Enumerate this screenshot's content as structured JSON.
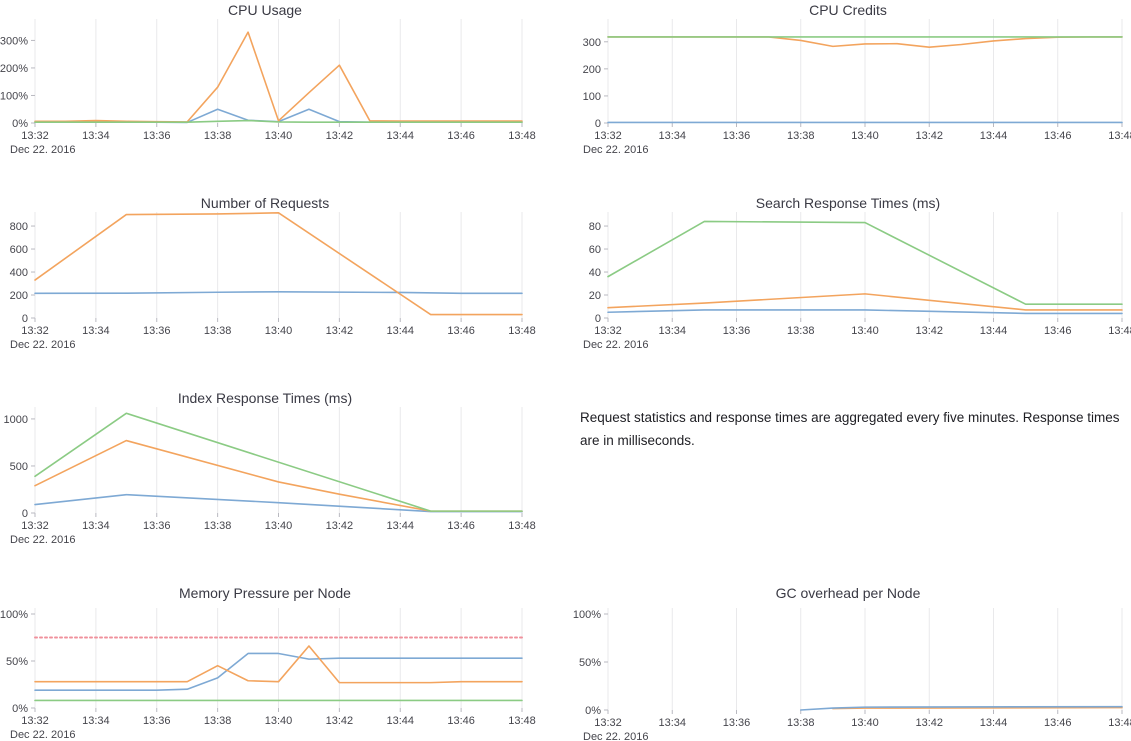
{
  "note": {
    "text": "Request statistics and response times are aggregated every five minutes. Response times are in milliseconds."
  },
  "palette": {
    "blue": "#7EA9D4",
    "orange": "#F3A45E",
    "green": "#8BCB84",
    "red": "#F0919C",
    "grid": "#E9E9EB",
    "tick_mark": "#B9B9C0",
    "tick_text": "#45454C",
    "title_text": "#3A3A44"
  },
  "x_axis": {
    "tick_labels": [
      "13:32",
      "13:34",
      "13:36",
      "13:38",
      "13:40",
      "13:42",
      "13:44",
      "13:46",
      "13:48"
    ],
    "date_label": "Dec 22. 2016",
    "start_minute": 0,
    "end_minute": 16,
    "tick_step_minutes": 2
  },
  "chart_data": [
    {
      "id": "cpu-usage",
      "type": "line",
      "title": "CPU Usage",
      "y_ticks": [
        {
          "value": 0,
          "label": "0%"
        },
        {
          "value": 100,
          "label": "100%"
        },
        {
          "value": 200,
          "label": "200%"
        },
        {
          "value": 300,
          "label": "300%"
        }
      ],
      "ylim": [
        0,
        356
      ],
      "grid": "vertical",
      "legend": "none",
      "series": [
        {
          "color": "blue",
          "x": [
            0,
            1,
            2,
            3,
            4,
            5,
            6,
            7,
            8,
            9,
            10,
            11,
            12,
            13,
            14,
            15,
            16
          ],
          "y": [
            3,
            3,
            4,
            3,
            3,
            2,
            50,
            10,
            5,
            50,
            5,
            3,
            3,
            3,
            3,
            3,
            3
          ]
        },
        {
          "color": "orange",
          "x": [
            0,
            1,
            2,
            3,
            4,
            5,
            6,
            7,
            8,
            9,
            10,
            11,
            12,
            13,
            14,
            15,
            16
          ],
          "y": [
            6,
            6,
            9,
            6,
            5,
            4,
            130,
            330,
            8,
            110,
            210,
            8,
            7,
            7,
            7,
            7,
            7
          ]
        },
        {
          "color": "green",
          "x": [
            0,
            1,
            2,
            3,
            4,
            5,
            6,
            7,
            8,
            9,
            10,
            11,
            12,
            13,
            14,
            15,
            16
          ],
          "y": [
            3,
            3,
            3,
            3,
            3,
            3,
            6,
            9,
            4,
            3,
            3,
            3,
            3,
            3,
            3,
            3,
            3
          ]
        }
      ]
    },
    {
      "id": "cpu-credits",
      "type": "line",
      "title": "CPU Credits",
      "y_ticks": [
        {
          "value": 0,
          "label": "0"
        },
        {
          "value": 100,
          "label": "100"
        },
        {
          "value": 200,
          "label": "200"
        },
        {
          "value": 300,
          "label": "300"
        }
      ],
      "ylim": [
        0,
        362
      ],
      "grid": "vertical",
      "legend": "none",
      "series": [
        {
          "color": "blue",
          "x": [
            0,
            16
          ],
          "y": [
            2,
            2
          ]
        },
        {
          "color": "orange",
          "x": [
            0,
            5,
            6,
            7,
            8,
            9,
            10,
            11,
            12,
            13,
            14,
            15,
            16
          ],
          "y": [
            318,
            318,
            305,
            283,
            292,
            293,
            280,
            290,
            303,
            312,
            317,
            318,
            318
          ]
        },
        {
          "color": "green",
          "x": [
            0,
            16
          ],
          "y": [
            318,
            318
          ]
        }
      ]
    },
    {
      "id": "number-of-requests",
      "type": "line",
      "title": "Number of Requests",
      "y_ticks": [
        {
          "value": 0,
          "label": "0"
        },
        {
          "value": 200,
          "label": "200"
        },
        {
          "value": 400,
          "label": "400"
        },
        {
          "value": 600,
          "label": "600"
        },
        {
          "value": 800,
          "label": "800"
        }
      ],
      "ylim": [
        0,
        870
      ],
      "grid": "vertical",
      "legend": "none",
      "series": [
        {
          "color": "blue",
          "x": [
            0,
            3,
            6,
            8,
            12,
            14,
            16
          ],
          "y": [
            215,
            216,
            224,
            228,
            222,
            215,
            215
          ]
        },
        {
          "color": "orange",
          "x": [
            0,
            3,
            6,
            8,
            13,
            16
          ],
          "y": [
            330,
            900,
            905,
            915,
            30,
            30
          ]
        }
      ]
    },
    {
      "id": "search-response-times",
      "type": "line",
      "title": "Search Response Times (ms)",
      "y_ticks": [
        {
          "value": 0,
          "label": "0"
        },
        {
          "value": 20,
          "label": "20"
        },
        {
          "value": 40,
          "label": "40"
        },
        {
          "value": 60,
          "label": "60"
        },
        {
          "value": 80,
          "label": "80"
        }
      ],
      "ylim": [
        0,
        87
      ],
      "grid": "vertical",
      "legend": "none",
      "series": [
        {
          "color": "blue",
          "x": [
            0,
            3,
            8,
            13,
            16
          ],
          "y": [
            5,
            7,
            7,
            4,
            4
          ]
        },
        {
          "color": "orange",
          "x": [
            0,
            3,
            8,
            13,
            16
          ],
          "y": [
            9,
            13,
            21,
            7,
            7
          ]
        },
        {
          "color": "green",
          "x": [
            0,
            3,
            8,
            13,
            16
          ],
          "y": [
            36,
            84,
            83,
            12,
            12
          ]
        }
      ]
    },
    {
      "id": "index-response-times",
      "type": "line",
      "title": "Index Response Times (ms)",
      "y_ticks": [
        {
          "value": 0,
          "label": "0"
        },
        {
          "value": 500,
          "label": "500"
        },
        {
          "value": 1000,
          "label": "1000"
        }
      ],
      "ylim": [
        0,
        1063
      ],
      "grid": "vertical",
      "legend": "none",
      "series": [
        {
          "color": "blue",
          "x": [
            0,
            3,
            8,
            13,
            16
          ],
          "y": [
            90,
            195,
            110,
            15,
            15
          ]
        },
        {
          "color": "orange",
          "x": [
            0,
            3,
            8,
            10,
            13,
            16
          ],
          "y": [
            290,
            770,
            330,
            200,
            20,
            20
          ]
        },
        {
          "color": "green",
          "x": [
            0,
            3,
            13,
            16
          ],
          "y": [
            390,
            1060,
            20,
            20
          ]
        }
      ]
    },
    {
      "id": "memory-pressure-per-node",
      "type": "line",
      "title": "Memory Pressure per Node",
      "y_ticks": [
        {
          "value": 0,
          "label": "0%"
        },
        {
          "value": 50,
          "label": "50%"
        },
        {
          "value": 100,
          "label": "100%"
        }
      ],
      "ylim": [
        0,
        100
      ],
      "grid": "vertical",
      "legend": "none",
      "series": [
        {
          "color": "blue",
          "x": [
            0,
            1,
            2,
            3,
            4,
            5,
            6,
            7,
            8,
            9,
            10,
            11,
            12,
            13,
            14,
            15,
            16
          ],
          "y": [
            19,
            19,
            19,
            19,
            19,
            20,
            32,
            58,
            58,
            52,
            53,
            53,
            53,
            53,
            53,
            53,
            53
          ]
        },
        {
          "color": "orange",
          "x": [
            0,
            1,
            2,
            3,
            4,
            5,
            6,
            7,
            8,
            9,
            10,
            11,
            12,
            13,
            14,
            15,
            16
          ],
          "y": [
            28,
            28,
            28,
            28,
            28,
            28,
            45,
            29,
            28,
            66,
            27,
            27,
            27,
            27,
            28,
            28,
            28
          ]
        },
        {
          "color": "green",
          "x": [
            0,
            16
          ],
          "y": [
            8,
            8
          ]
        },
        {
          "color": "red",
          "x": [
            0,
            16
          ],
          "y": [
            75,
            75
          ],
          "dash": true,
          "role": "threshold"
        }
      ]
    },
    {
      "id": "gc-overhead-per-node",
      "type": "line",
      "title": "GC overhead per Node",
      "y_ticks": [
        {
          "value": 0,
          "label": "0%"
        },
        {
          "value": 50,
          "label": "50%"
        },
        {
          "value": 100,
          "label": "100%"
        }
      ],
      "ylim": [
        0,
        100
      ],
      "grid": "vertical",
      "legend": "none",
      "series": [
        {
          "color": "orange",
          "x": [
            7,
            8,
            16
          ],
          "y": [
            1.5,
            2,
            2.5
          ]
        },
        {
          "color": "blue",
          "x": [
            6,
            7,
            8,
            16
          ],
          "y": [
            0,
            2,
            3,
            3.5
          ]
        }
      ]
    }
  ]
}
